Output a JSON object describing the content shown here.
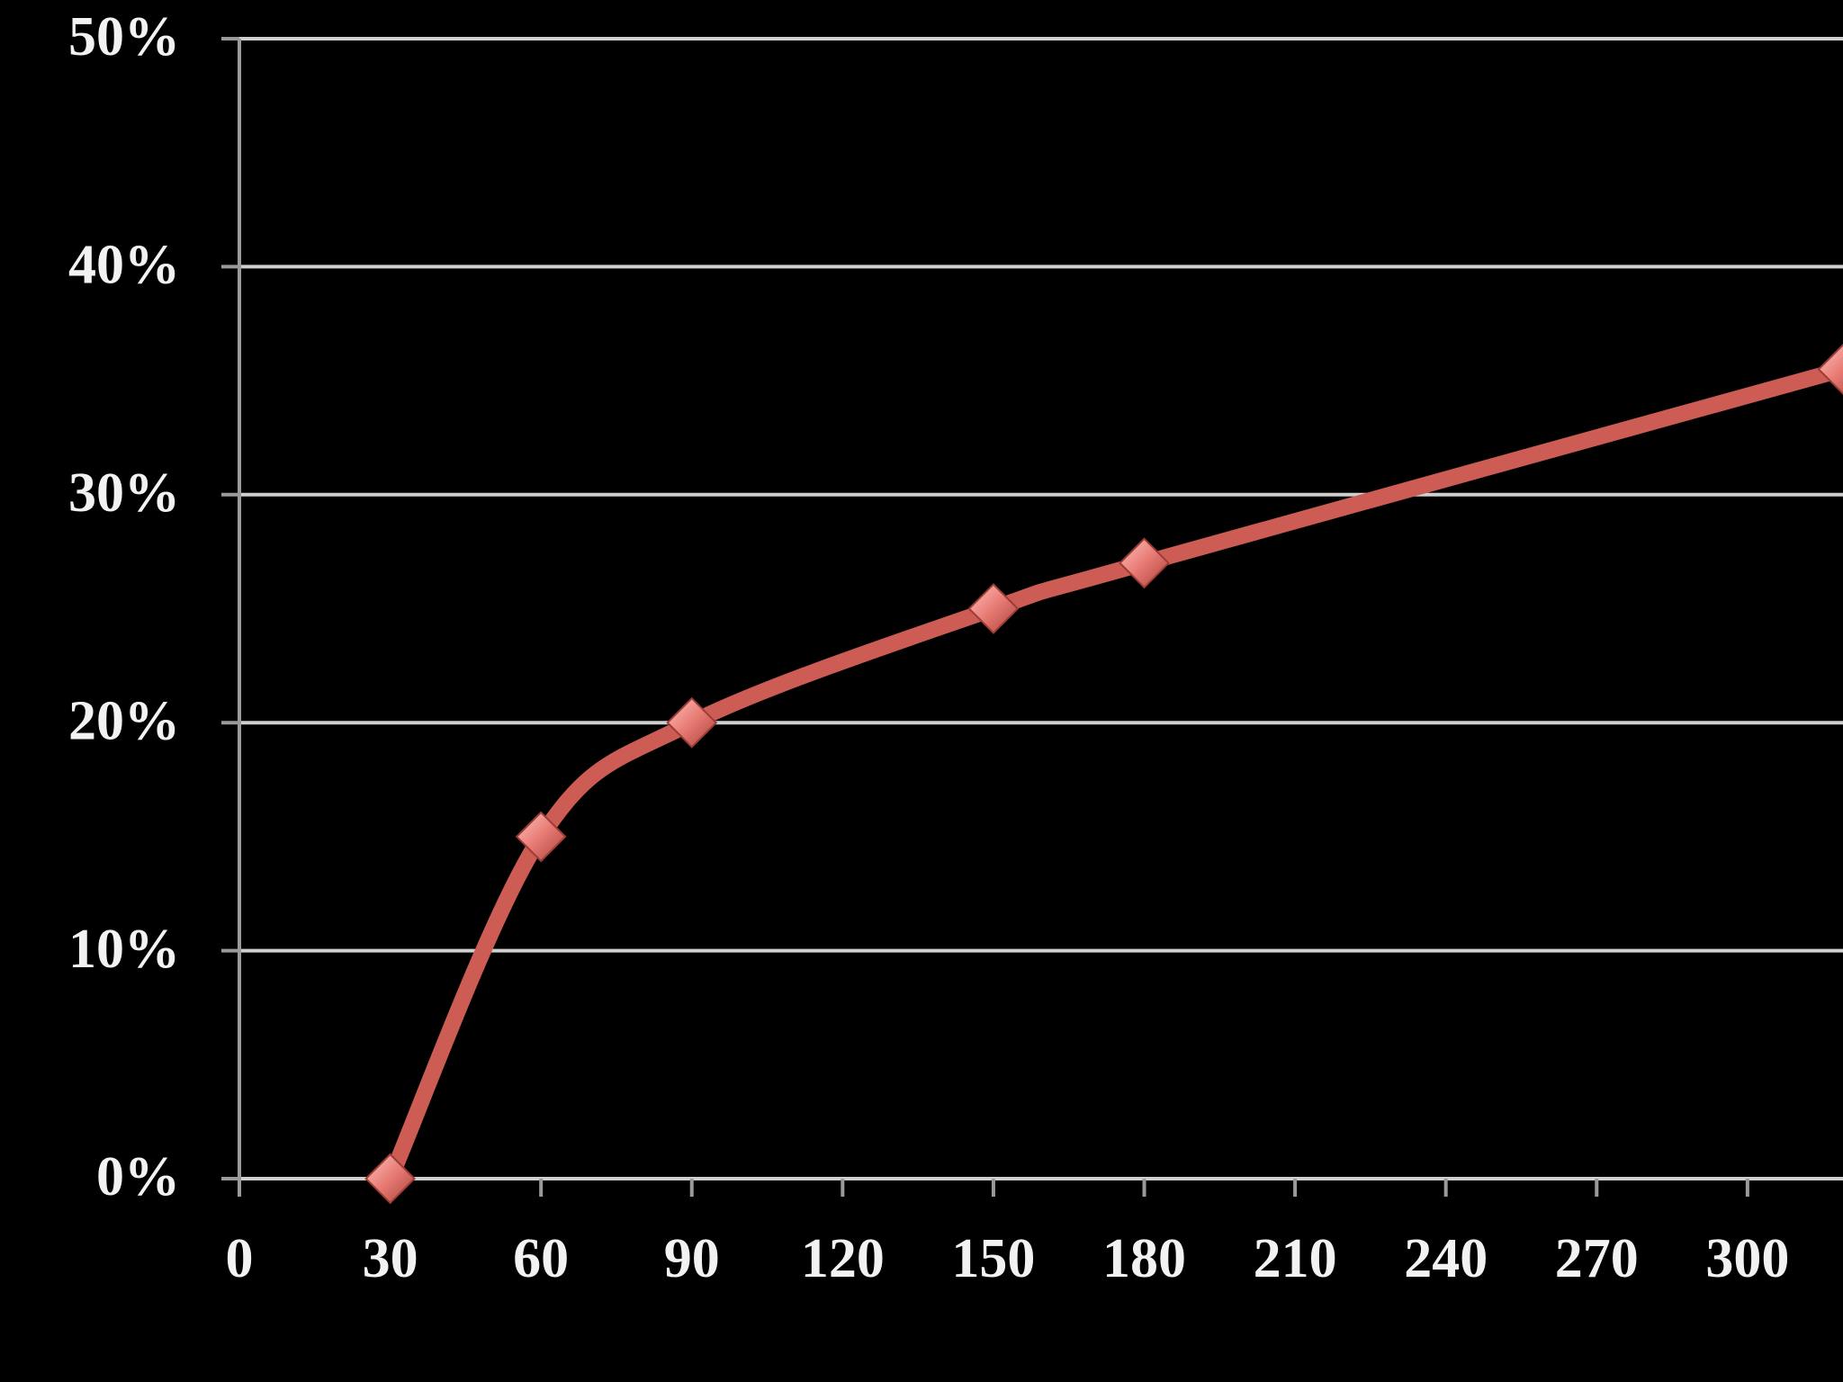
{
  "chart_data": {
    "type": "line",
    "x": [
      30,
      60,
      90,
      150,
      180,
      319
    ],
    "series": [
      {
        "color": "#cd5c55",
        "values": [
          0,
          15,
          20,
          25,
          27,
          35.5
        ]
      }
    ],
    "xlim": [
      0,
      319
    ],
    "xticks": [
      0,
      30,
      60,
      90,
      120,
      150,
      180,
      210,
      240,
      270,
      300
    ],
    "ylim": [
      0,
      50
    ],
    "yticks": [
      {
        "value": 0,
        "label": "0%"
      },
      {
        "value": 10,
        "label": "10%"
      },
      {
        "value": 20,
        "label": "20%"
      },
      {
        "value": 30,
        "label": "30%"
      },
      {
        "value": 40,
        "label": "40%"
      },
      {
        "value": 50,
        "label": "50%"
      }
    ],
    "grid": true
  }
}
